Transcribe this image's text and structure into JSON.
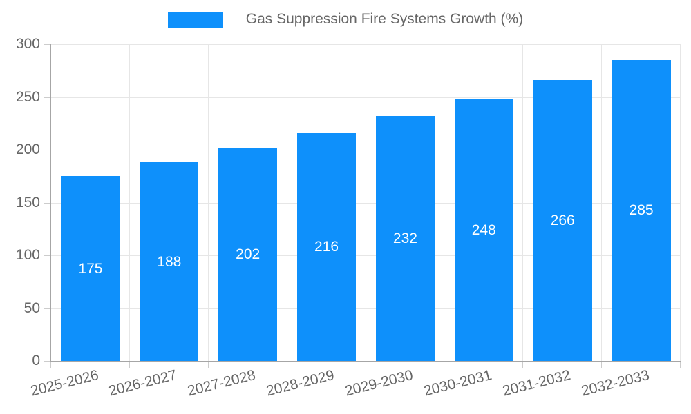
{
  "chart_data": {
    "type": "bar",
    "title": "Gas Suppression Fire Systems Growth (%)",
    "legend": [
      "Gas Suppression Fire Systems Growth (%)"
    ],
    "legend_position": "top",
    "categories": [
      "2025-2026",
      "2026-2027",
      "2027-2028",
      "2028-2029",
      "2029-2030",
      "2030-2031",
      "2031-2032",
      "2032-2033"
    ],
    "values": [
      175,
      188,
      202,
      216,
      232,
      248,
      266,
      285
    ],
    "xlabel": "",
    "ylabel": "",
    "ylim": [
      0,
      300
    ],
    "yticks": [
      0,
      50,
      100,
      150,
      200,
      250,
      300
    ],
    "grid": true,
    "bar_color": "#0e90fb",
    "bar_label_color": "#ffffff",
    "axis_text_color": "#666666",
    "grid_color": "#e6e6e6",
    "tick_color": "#cccccc",
    "axis_line_color": "#a6a6a6"
  }
}
